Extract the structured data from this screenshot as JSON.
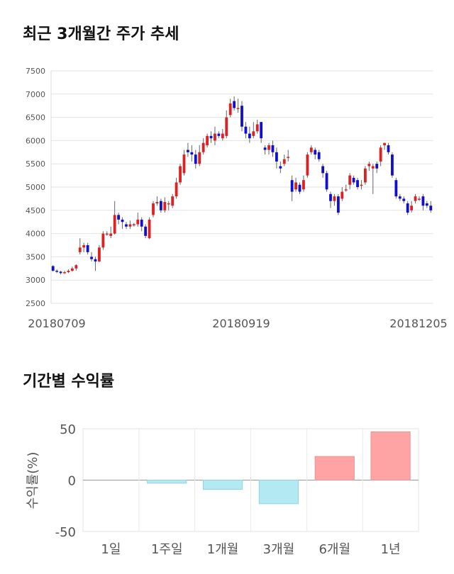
{
  "headings": {
    "trend_title": "최근 3개월간 주가 추세",
    "returns_title": "기간별 수익률"
  },
  "chart_data": [
    {
      "type": "candlestick",
      "ylim": [
        2500,
        7500
      ],
      "y_ticks": [
        7500,
        7000,
        6500,
        6000,
        5500,
        5000,
        4500,
        4000,
        3500,
        3000,
        2500
      ],
      "x_labels": [
        "20180709",
        "20180919",
        "20181205"
      ],
      "up_color": "#e02020",
      "down_color": "#1010cc",
      "candles": [
        [
          3300,
          3200,
          3320,
          3180
        ],
        [
          3200,
          3180,
          3230,
          3150
        ],
        [
          3180,
          3150,
          3200,
          3120
        ],
        [
          3150,
          3170,
          3200,
          3130
        ],
        [
          3170,
          3200,
          3230,
          3150
        ],
        [
          3200,
          3250,
          3290,
          3180
        ],
        [
          3250,
          3320,
          3340,
          3200
        ],
        [
          3600,
          3700,
          3900,
          3550
        ],
        [
          3700,
          3750,
          3800,
          3600
        ],
        [
          3750,
          3600,
          3800,
          3550
        ],
        [
          3500,
          3450,
          3600,
          3400
        ],
        [
          3450,
          3400,
          3500,
          3200
        ],
        [
          3400,
          3700,
          3750,
          3380
        ],
        [
          3700,
          4000,
          4050,
          3650
        ],
        [
          4000,
          4000,
          4050,
          3950
        ],
        [
          3950,
          4000,
          4150,
          3900
        ],
        [
          4000,
          4400,
          4700,
          3980
        ],
        [
          4400,
          4300,
          4450,
          4200
        ],
        [
          4300,
          4250,
          4350,
          4100
        ],
        [
          4200,
          4150,
          4250,
          4100
        ],
        [
          4150,
          4200,
          4280,
          4100
        ],
        [
          4200,
          4200,
          4230,
          4150
        ],
        [
          4200,
          4300,
          4450,
          4150
        ],
        [
          4300,
          4150,
          4350,
          4050
        ],
        [
          4150,
          3950,
          4200,
          3900
        ],
        [
          3900,
          4300,
          4350,
          3880
        ],
        [
          4400,
          4650,
          4700,
          4350
        ],
        [
          4650,
          4680,
          4800,
          4600
        ],
        [
          4700,
          4500,
          4750,
          4450
        ],
        [
          4500,
          4680,
          4780,
          4450
        ],
        [
          4650,
          4650,
          4700,
          4500
        ],
        [
          4600,
          4800,
          4850,
          4550
        ],
        [
          4800,
          5100,
          5200,
          4750
        ],
        [
          5100,
          5450,
          5500,
          5050
        ],
        [
          5300,
          5700,
          5800,
          5250
        ],
        [
          5800,
          5750,
          5950,
          5650
        ],
        [
          5750,
          5700,
          5900,
          5550
        ],
        [
          5700,
          5500,
          5800,
          5400
        ],
        [
          5500,
          5750,
          5900,
          5450
        ],
        [
          5750,
          5950,
          6050,
          5700
        ],
        [
          5900,
          6100,
          6150,
          5850
        ],
        [
          6100,
          6050,
          6200,
          5950
        ],
        [
          6000,
          6150,
          6300,
          5900
        ],
        [
          6150,
          6100,
          6200,
          6050
        ],
        [
          6050,
          6150,
          6250,
          6000
        ],
        [
          6100,
          6500,
          6650,
          6050
        ],
        [
          6550,
          6800,
          6900,
          6500
        ],
        [
          6850,
          6700,
          6950,
          6650
        ],
        [
          6700,
          6700,
          6900,
          6600
        ],
        [
          6750,
          6300,
          6850,
          6200
        ],
        [
          6300,
          6150,
          6400,
          6050
        ],
        [
          6150,
          6050,
          6300,
          5950
        ],
        [
          6100,
          6200,
          6400,
          6050
        ],
        [
          6200,
          6350,
          6450,
          6150
        ],
        [
          6400,
          6050,
          6400,
          5950
        ],
        [
          5850,
          5800,
          5900,
          5700
        ],
        [
          5800,
          5900,
          5950,
          5700
        ],
        [
          5900,
          5750,
          6000,
          5650
        ],
        [
          5750,
          5550,
          5850,
          5400
        ],
        [
          5450,
          5400,
          5550,
          5300
        ],
        [
          5500,
          5600,
          5700,
          5450
        ],
        [
          5650,
          5650,
          5800,
          5550
        ],
        [
          5150,
          4900,
          5250,
          4700
        ],
        [
          4950,
          5100,
          5200,
          4900
        ],
        [
          5050,
          4900,
          5100,
          4850
        ],
        [
          4950,
          5150,
          5250,
          4900
        ],
        [
          5250,
          5700,
          5750,
          5200
        ],
        [
          5750,
          5850,
          5900,
          5700
        ],
        [
          5800,
          5700,
          5850,
          5600
        ],
        [
          5750,
          5600,
          5800,
          5550
        ],
        [
          5450,
          5300,
          5500,
          5200
        ],
        [
          5300,
          4950,
          5350,
          4900
        ],
        [
          4850,
          4700,
          4900,
          4550
        ],
        [
          4700,
          4800,
          4850,
          4600
        ],
        [
          4800,
          4450,
          4850,
          4400
        ],
        [
          4750,
          4900,
          5000,
          4700
        ],
        [
          4950,
          4950,
          5050,
          4900
        ],
        [
          5050,
          5250,
          5300,
          4950
        ],
        [
          5200,
          5100,
          5250,
          5050
        ],
        [
          5150,
          5000,
          5200,
          4950
        ],
        [
          5050,
          5050,
          5150,
          4950
        ],
        [
          5100,
          5400,
          5450,
          5050
        ],
        [
          5450,
          5500,
          5550,
          5350
        ],
        [
          5400,
          5450,
          5500,
          4850
        ],
        [
          5500,
          5400,
          5550,
          5300
        ],
        [
          5550,
          5850,
          5900,
          5450
        ],
        [
          5900,
          5950,
          5950,
          5800
        ],
        [
          5900,
          5750,
          5950,
          5700
        ],
        [
          5700,
          5250,
          5750,
          5200
        ],
        [
          5150,
          4800,
          5200,
          4750
        ],
        [
          4800,
          4750,
          4850,
          4700
        ],
        [
          4750,
          4700,
          4800,
          4650
        ],
        [
          4650,
          4450,
          4700,
          4400
        ],
        [
          4500,
          4600,
          4700,
          4450
        ],
        [
          4700,
          4800,
          4850,
          4650
        ],
        [
          4750,
          4750,
          4800,
          4700
        ],
        [
          4800,
          4600,
          4850,
          4500
        ],
        [
          4650,
          4600,
          4700,
          4550
        ],
        [
          4600,
          4500,
          4700,
          4450
        ]
      ]
    },
    {
      "type": "bar",
      "ylabel": "수익률(%)",
      "ylim": [
        -50,
        50
      ],
      "y_ticks": [
        50,
        0,
        -50
      ],
      "categories": [
        "1일",
        "1주일",
        "1개월",
        "3개월",
        "6개월",
        "1년"
      ],
      "values": [
        0,
        -3,
        -9,
        -23,
        23,
        47
      ],
      "positive_color": "#ffa4a4",
      "negative_color": "#b2e9f3"
    }
  ]
}
